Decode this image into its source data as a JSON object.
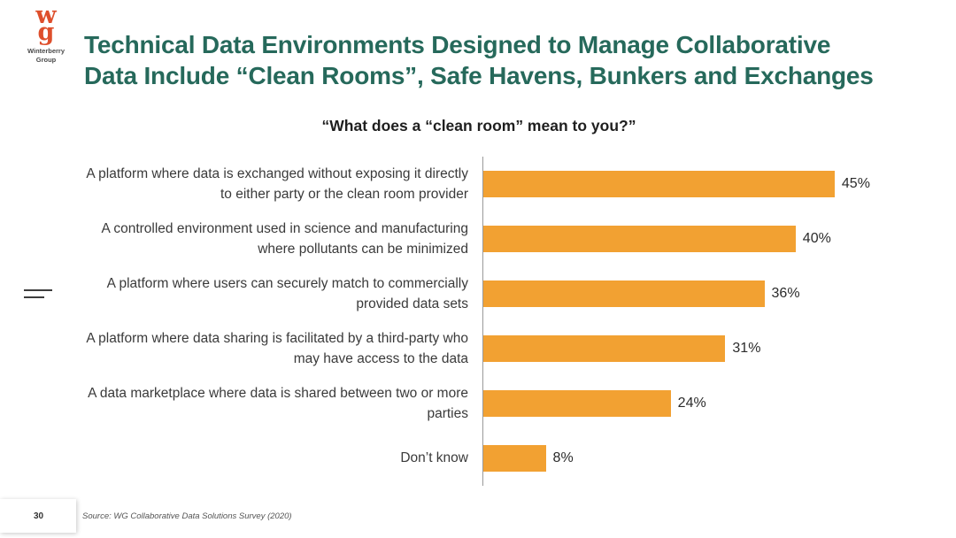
{
  "logo": {
    "letter_top": "w",
    "letter_bottom": "g",
    "caption": "Winterberry Group",
    "color": "#DE4F2C"
  },
  "header": {
    "title": "Technical Data Environments Designed to Manage Collaborative Data Include “Clean Rooms”, Safe Havens, Bunkers and Exchanges",
    "title_color": "#26695B"
  },
  "icons": {
    "left_margin_icon": "double-dash-icon"
  },
  "chart_data": {
    "type": "bar",
    "orientation": "horizontal",
    "title": "“What does a “clean room” mean to you?”",
    "categories": [
      "A platform where data is exchanged without exposing it directly to either party or the clean room provider",
      "A controlled environment used in science and manufacturing where pollutants can be minimized",
      "A platform where users can securely match to commercially provided data sets",
      "A platform where data sharing is facilitated by a third-party who may have access to the data",
      "A data marketplace where data is shared between two or more parties",
      "Don’t know"
    ],
    "values": [
      45,
      40,
      36,
      31,
      24,
      8
    ],
    "value_labels": [
      "45%",
      "40%",
      "36%",
      "31%",
      "24%",
      "8%"
    ],
    "xlim": [
      0,
      50
    ],
    "bar_color": "#F2A132",
    "grid": false,
    "legend": "none",
    "xlabel": "",
    "ylabel": ""
  },
  "footer": {
    "page_number": "30",
    "source": "Source: WG Collaborative Data Solutions Survey (2020)"
  }
}
